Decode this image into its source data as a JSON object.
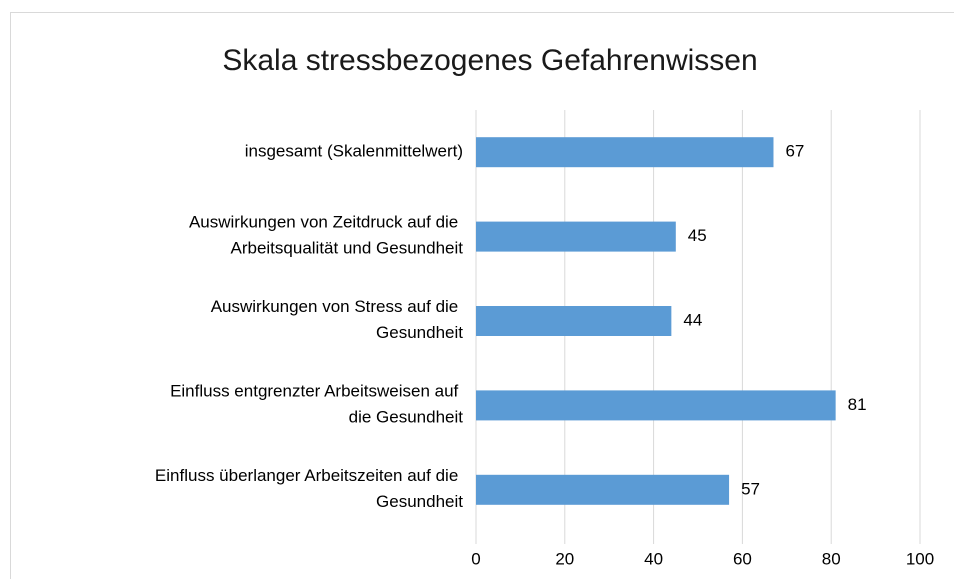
{
  "chart_data": {
    "type": "bar",
    "orientation": "horizontal",
    "title": "Skala stressbezogenes Gefahrenwissen",
    "categories": [
      "insgesamt (Skalenmittelwert)",
      "Auswirkungen von Zeitdruck auf die\nArbeitsqualität und Gesundheit",
      "Auswirkungen von Stress auf die\nGesundheit",
      "Einfluss entgrenzter Arbeitsweisen auf\ndie Gesundheit",
      "Einfluss überlanger Arbeitszeiten auf die\nGesundheit"
    ],
    "values": [
      67,
      45,
      44,
      81,
      57
    ],
    "color": "#5b9bd5",
    "xlim": [
      0,
      100
    ],
    "xticks": [
      0,
      20,
      40,
      60,
      80,
      100
    ],
    "grid": true
  }
}
